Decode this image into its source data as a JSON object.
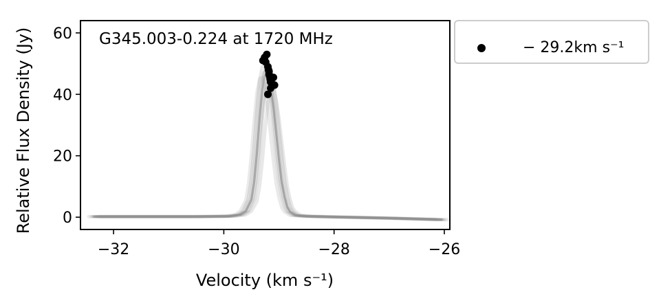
{
  "chart_data": {
    "type": "line",
    "title": "G345.003-0.224 at 1720 MHz",
    "xlabel": "Velocity (km s⁻¹)",
    "ylabel": "Relative Flux Density (Jy)",
    "xlim": [
      -32.6,
      -25.9
    ],
    "ylim": [
      -4,
      64
    ],
    "xticks": [
      -32,
      -30,
      -28,
      -26
    ],
    "xtick_labels": [
      "−32",
      "−30",
      "−28",
      "−26"
    ],
    "yticks": [
      0,
      20,
      40,
      60
    ],
    "ytick_labels": [
      "0",
      "20",
      "40",
      "60"
    ],
    "grid": false,
    "legend_position": "outside-right-top",
    "line_color": "#8c8c8c",
    "marker_color": "#000000",
    "series": [
      {
        "kind": "spectra",
        "x": [
          -32.35,
          -31.5,
          -30.5,
          -29.9,
          -29.7,
          -29.6,
          -29.5,
          -29.45,
          -29.4,
          -29.35,
          -29.3,
          -29.25,
          -29.2,
          -29.15,
          -29.1,
          -29.05,
          -29.0,
          -28.95,
          -28.9,
          -28.85,
          -28.8,
          -28.7,
          -28.5,
          -28.0,
          -27.0,
          -26.05
        ],
        "y": [
          0.2,
          0.2,
          0.2,
          0.3,
          0.8,
          2.0,
          6.0,
          12.0,
          22.0,
          34.0,
          44.0,
          49.0,
          49.5,
          45.0,
          38.0,
          29.0,
          20.0,
          12.0,
          7.0,
          3.5,
          1.8,
          0.6,
          0.3,
          0.1,
          -0.3,
          -0.8
        ]
      },
      {
        "name": "− 29.2km s⁻¹",
        "kind": "peaks",
        "x": [
          -29.29,
          -29.26,
          -29.24,
          -29.22,
          -29.2,
          -29.19,
          -29.18,
          -29.17,
          -29.16,
          -29.15,
          -29.13,
          -29.1,
          -29.08,
          -29.2,
          -29.15,
          -29.18
        ],
        "y": [
          51.0,
          52.0,
          50.5,
          53.0,
          49.0,
          48.0,
          47.5,
          46.0,
          45.0,
          44.0,
          43.5,
          45.5,
          43.0,
          40.0,
          42.0,
          46.5
        ]
      }
    ]
  }
}
